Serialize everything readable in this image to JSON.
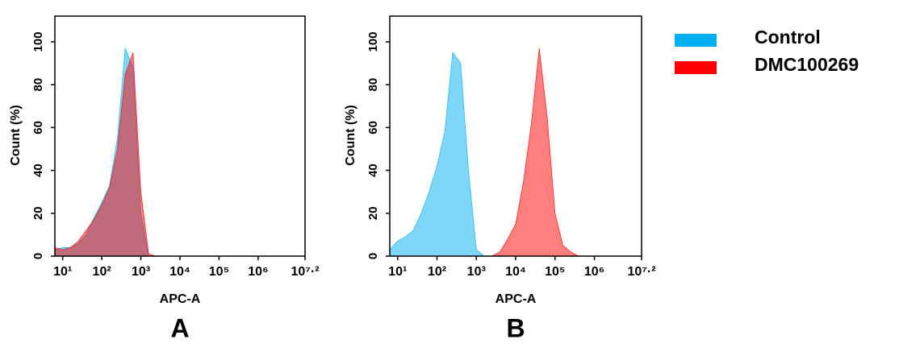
{
  "chart_data": [
    {
      "type": "area",
      "label": "A",
      "x_label": "APC-A",
      "y_label": "Count (%)",
      "xscale": "log",
      "x": [
        6.31,
        10,
        15.8,
        25.1,
        39.8,
        63.1,
        100,
        158,
        251,
        398,
        631,
        1000,
        1585,
        2512,
        3981,
        6310,
        10000,
        15849,
        25119,
        39811,
        63096,
        100000,
        158489,
        251189,
        398107,
        630957
      ],
      "series": [
        {
          "color": "#00b0f0",
          "values": [
            3,
            4,
            4,
            6,
            10,
            18,
            25,
            33,
            55,
            97,
            88,
            20,
            0,
            0,
            0,
            0,
            0,
            0,
            0,
            0,
            0,
            0,
            0,
            0,
            0,
            0
          ]
        },
        {
          "color": "#ff0000",
          "values": [
            4,
            3,
            4,
            7,
            12,
            17,
            24,
            32,
            50,
            85,
            95,
            30,
            1,
            0,
            0,
            0,
            0,
            0,
            0,
            0,
            0,
            0,
            0,
            0,
            0,
            0
          ]
        }
      ],
      "xlim": [
        6.31,
        15848932
      ],
      "xticks": [
        {
          "value": 10,
          "label": "10¹"
        },
        {
          "value": 100,
          "label": "10²"
        },
        {
          "value": 1000,
          "label": "10³"
        },
        {
          "value": 10000,
          "label": "10⁴"
        },
        {
          "value": 100000,
          "label": "10⁵"
        },
        {
          "value": 1000000,
          "label": "10⁶"
        },
        {
          "value": 15848932,
          "label": "10⁷·²"
        }
      ],
      "ylim": [
        0,
        112
      ],
      "yticks": [
        0,
        20,
        40,
        60,
        80,
        100
      ]
    },
    {
      "type": "area",
      "label": "B",
      "x_label": "APC-A",
      "y_label": "Count (%)",
      "xscale": "log",
      "x": [
        6.31,
        10,
        15.8,
        25.1,
        39.8,
        63.1,
        100,
        158,
        251,
        398,
        631,
        1000,
        1585,
        2512,
        3981,
        6310,
        10000,
        15849,
        25119,
        39811,
        63096,
        100000,
        158489,
        251189,
        398107,
        630957
      ],
      "series": [
        {
          "name": "Control",
          "color": "#00b0f0",
          "values": [
            3,
            7,
            9,
            12,
            20,
            30,
            42,
            58,
            95,
            90,
            40,
            3,
            0,
            0,
            0,
            0,
            0,
            0,
            0,
            0,
            0,
            0,
            0,
            0,
            0,
            0
          ]
        },
        {
          "name": "DMC100269",
          "color": "#ff0000",
          "values": [
            0,
            0,
            0,
            0,
            0,
            0,
            0,
            0,
            0,
            0,
            0,
            0,
            0,
            0,
            2,
            8,
            15,
            35,
            62,
            97,
            65,
            20,
            5,
            2,
            0,
            0
          ]
        }
      ],
      "xlim": [
        6.31,
        15848932
      ],
      "xticks": [
        {
          "value": 10,
          "label": "10¹"
        },
        {
          "value": 100,
          "label": "10²"
        },
        {
          "value": 1000,
          "label": "10³"
        },
        {
          "value": 10000,
          "label": "10⁴"
        },
        {
          "value": 100000,
          "label": "10⁵"
        },
        {
          "value": 1000000,
          "label": "10⁶"
        },
        {
          "value": 15848932,
          "label": "10⁷·²"
        }
      ],
      "ylim": [
        0,
        112
      ],
      "yticks": [
        0,
        20,
        40,
        60,
        80,
        100
      ]
    }
  ]
}
